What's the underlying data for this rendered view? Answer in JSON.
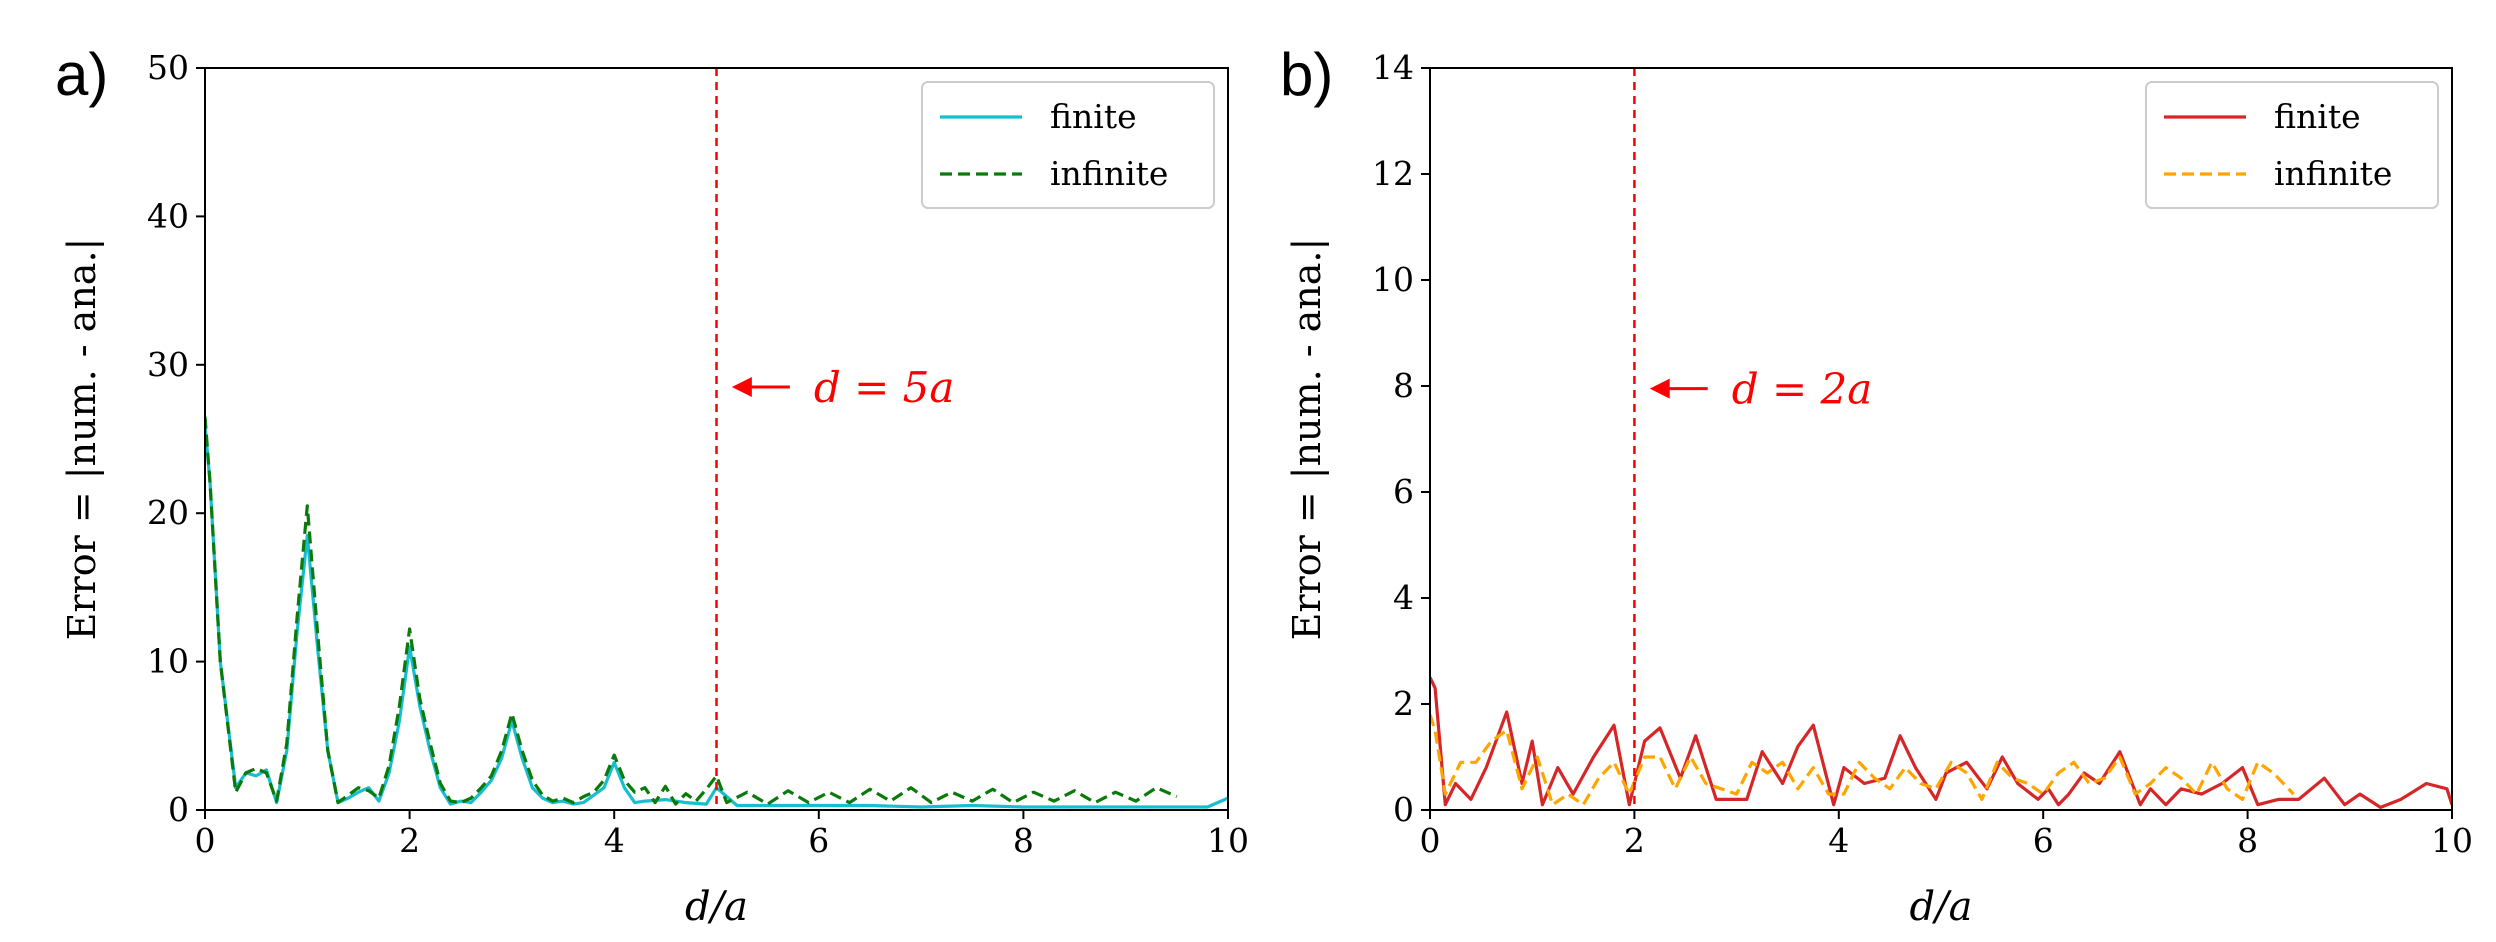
{
  "chart_data": [
    {
      "type": "line",
      "panel_label": "a)",
      "xlabel": "d/a",
      "ylabel": "Error = |num. - ana.|",
      "xlim": [
        0,
        10
      ],
      "ylim": [
        0,
        50
      ],
      "xticks": [
        "0",
        "2",
        "4",
        "6",
        "8",
        "10"
      ],
      "yticks": [
        "0",
        "10",
        "20",
        "30",
        "40",
        "50"
      ],
      "legend_position": "top-right",
      "vline": {
        "x": 5,
        "color": "#ff0000"
      },
      "annotation": {
        "text": "d = 5a",
        "x": 5.15,
        "y": 28.5,
        "color": "#ff0000"
      },
      "series": [
        {
          "name": "finite",
          "color": "#17becf",
          "style": "solid",
          "x": [
            0,
            0.05,
            0.15,
            0.3,
            0.4,
            0.5,
            0.6,
            0.7,
            0.8,
            0.9,
            1.0,
            1.1,
            1.2,
            1.3,
            1.4,
            1.5,
            1.6,
            1.7,
            1.8,
            1.9,
            2.0,
            2.1,
            2.2,
            2.3,
            2.4,
            2.5,
            2.6,
            2.7,
            2.8,
            2.9,
            3.0,
            3.1,
            3.2,
            3.3,
            3.4,
            3.5,
            3.6,
            3.7,
            3.8,
            3.9,
            4.0,
            4.1,
            4.2,
            4.3,
            4.5,
            4.7,
            4.9,
            5.0,
            5.2,
            5.5,
            6.0,
            6.5,
            7.0,
            7.5,
            8.0,
            8.5,
            9.0,
            9.5,
            9.8,
            10.0
          ],
          "values": [
            26,
            22,
            10,
            1.5,
            2.5,
            2.3,
            2.7,
            0.5,
            4,
            12,
            18.5,
            11,
            4,
            0.5,
            0.8,
            1.2,
            1.5,
            0.6,
            2.5,
            6,
            11,
            7,
            4,
            1.5,
            0.4,
            0.6,
            0.5,
            1.2,
            2,
            3.5,
            6,
            3.5,
            1.5,
            0.8,
            0.5,
            0.6,
            0.4,
            0.5,
            1,
            1.5,
            3.2,
            1.5,
            0.5,
            0.6,
            0.7,
            0.5,
            0.4,
            1.5,
            0.3,
            0.3,
            0.3,
            0.3,
            0.2,
            0.3,
            0.2,
            0.2,
            0.2,
            0.2,
            0.2,
            0.8
          ]
        },
        {
          "name": "infinite",
          "color": "#0a7a0a",
          "style": "dashed",
          "x": [
            0,
            0.05,
            0.15,
            0.3,
            0.4,
            0.5,
            0.6,
            0.7,
            0.8,
            0.9,
            1.0,
            1.1,
            1.2,
            1.3,
            1.4,
            1.5,
            1.6,
            1.7,
            1.8,
            1.9,
            2.0,
            2.1,
            2.2,
            2.3,
            2.4,
            2.5,
            2.6,
            2.7,
            2.8,
            2.9,
            3.0,
            3.1,
            3.2,
            3.3,
            3.4,
            3.5,
            3.6,
            3.7,
            3.8,
            3.9,
            4.0,
            4.1,
            4.2,
            4.3,
            4.4,
            4.5,
            4.6,
            4.7,
            4.8,
            4.9,
            5.0,
            5.1,
            5.3,
            5.5,
            5.7,
            5.9,
            6.1,
            6.3,
            6.5,
            6.7,
            6.9,
            7.1,
            7.3,
            7.5,
            7.7,
            7.9,
            8.1,
            8.3,
            8.5,
            8.7,
            8.9,
            9.1,
            9.3,
            9.5
          ],
          "values": [
            26.5,
            22,
            10,
            1.2,
            2.5,
            2.8,
            2.5,
            0.6,
            4.5,
            13,
            20.5,
            12,
            4,
            0.5,
            1,
            1.5,
            1.3,
            0.8,
            3,
            7,
            12.2,
            7.5,
            4.5,
            1.8,
            0.6,
            0.5,
            0.8,
            1.5,
            2.3,
            4,
            6.5,
            4,
            2,
            1,
            0.6,
            0.8,
            0.5,
            0.9,
            1.2,
            2,
            3.7,
            2,
            1.2,
            1.5,
            0.5,
            1.6,
            0.4,
            1.1,
            0.6,
            1.4,
            2.3,
            0.5,
            1.2,
            0.4,
            1.3,
            0.5,
            1.2,
            0.5,
            1.4,
            0.6,
            1.5,
            0.5,
            1.2,
            0.6,
            1.4,
            0.5,
            1.2,
            0.6,
            1.3,
            0.5,
            1.2,
            0.6,
            1.5,
            0.9
          ]
        }
      ]
    },
    {
      "type": "line",
      "panel_label": "b)",
      "xlabel": "d/a",
      "ylabel": "Error = |num. - ana.|",
      "xlim": [
        0,
        10
      ],
      "ylim": [
        0,
        14
      ],
      "xticks": [
        "0",
        "2",
        "4",
        "6",
        "8",
        "10"
      ],
      "yticks": [
        "0",
        "2",
        "4",
        "6",
        "8",
        "10",
        "12",
        "14"
      ],
      "legend_position": "top-right",
      "vline": {
        "x": 2,
        "color": "#ff0000"
      },
      "annotation": {
        "text": "d = 2a",
        "x": 2.15,
        "y": 7.95,
        "color": "#ff0000"
      },
      "series": [
        {
          "name": "finite",
          "color": "#d62728",
          "style": "solid",
          "x": [
            0,
            0.05,
            0.15,
            0.25,
            0.4,
            0.55,
            0.75,
            0.9,
            1.0,
            1.1,
            1.25,
            1.4,
            1.6,
            1.8,
            1.95,
            2.1,
            2.25,
            2.45,
            2.6,
            2.8,
            3.0,
            3.1,
            3.25,
            3.45,
            3.6,
            3.75,
            3.95,
            4.05,
            4.25,
            4.45,
            4.6,
            4.75,
            4.95,
            5.05,
            5.25,
            5.45,
            5.6,
            5.75,
            5.95,
            6.05,
            6.15,
            6.25,
            6.4,
            6.55,
            6.75,
            6.95,
            7.05,
            7.2,
            7.35,
            7.55,
            7.75,
            7.95,
            8.1,
            8.3,
            8.5,
            8.75,
            8.95,
            9.1,
            9.3,
            9.5,
            9.75,
            9.95,
            10.0
          ],
          "values": [
            2.5,
            2.3,
            0.1,
            0.5,
            0.2,
            0.8,
            1.85,
            0.5,
            1.3,
            0.1,
            0.8,
            0.3,
            1.0,
            1.6,
            0.1,
            1.3,
            1.55,
            0.6,
            1.4,
            0.2,
            0.2,
            0.2,
            1.1,
            0.5,
            1.2,
            1.6,
            0.1,
            0.8,
            0.5,
            0.6,
            1.4,
            0.8,
            0.2,
            0.7,
            0.9,
            0.4,
            1.0,
            0.5,
            0.2,
            0.4,
            0.1,
            0.3,
            0.7,
            0.5,
            1.1,
            0.1,
            0.4,
            0.1,
            0.4,
            0.3,
            0.5,
            0.8,
            0.1,
            0.2,
            0.2,
            0.6,
            0.1,
            0.3,
            0.05,
            0.2,
            0.5,
            0.4,
            0.1
          ]
        },
        {
          "name": "infinite",
          "color": "#ffa500",
          "style": "dashed",
          "x": [
            0,
            0.05,
            0.15,
            0.3,
            0.45,
            0.6,
            0.75,
            0.9,
            1.05,
            1.2,
            1.35,
            1.5,
            1.65,
            1.8,
            1.95,
            2.1,
            2.25,
            2.4,
            2.55,
            2.7,
            2.85,
            3.0,
            3.15,
            3.3,
            3.45,
            3.6,
            3.75,
            3.9,
            4.05,
            4.2,
            4.35,
            4.5,
            4.65,
            4.8,
            4.95,
            5.1,
            5.25,
            5.4,
            5.55,
            5.7,
            5.85,
            6.0,
            6.15,
            6.3,
            6.45,
            6.6,
            6.75,
            6.9,
            7.05,
            7.2,
            7.35,
            7.5,
            7.65,
            7.8,
            7.95,
            8.1,
            8.25,
            8.45
          ],
          "values": [
            1.8,
            1.5,
            0.3,
            0.9,
            0.9,
            1.3,
            1.5,
            0.4,
            1.0,
            0.1,
            0.3,
            0.1,
            0.6,
            0.9,
            0.3,
            1.0,
            1.0,
            0.4,
            1.0,
            0.5,
            0.4,
            0.3,
            0.9,
            0.7,
            0.9,
            0.4,
            0.8,
            0.3,
            0.3,
            0.9,
            0.6,
            0.4,
            0.8,
            0.5,
            0.4,
            0.9,
            0.7,
            0.2,
            0.9,
            0.6,
            0.5,
            0.3,
            0.7,
            0.9,
            0.5,
            0.6,
            1.0,
            0.3,
            0.5,
            0.8,
            0.6,
            0.3,
            0.9,
            0.4,
            0.2,
            0.9,
            0.7,
            0.3
          ]
        }
      ]
    }
  ]
}
